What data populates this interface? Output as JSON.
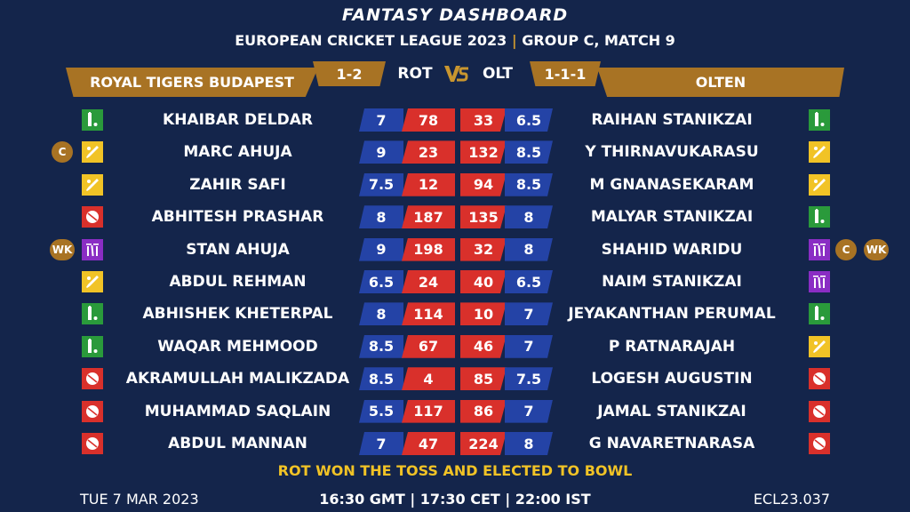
{
  "header": {
    "title": "FANTASY DASHBOARD",
    "subtitle_league": "EUROPEAN CRICKET LEAGUE 2023",
    "subtitle_separator": "|",
    "subtitle_match": "GROUP C, MATCH 9"
  },
  "teams": {
    "left": {
      "name": "ROYAL TIGERS BUDAPEST",
      "abbr": "ROT",
      "record": "1-2"
    },
    "right": {
      "name": "OLTEN",
      "abbr": "OLT",
      "record": "1-1-1"
    },
    "vs": "VS"
  },
  "colors": {
    "background": "#14254b",
    "gold": "#a87324",
    "blue_cell": "#2443a6",
    "red_cell": "#d9302b",
    "toss_text": "#f1c326",
    "bat_role": "#2a9a3b",
    "allrounder_role": "#f1c326",
    "bowler_role": "#d9302b",
    "keeper_role": "#8a2dc4"
  },
  "players": [
    {
      "left": {
        "name": "KHAIBAR DELDAR",
        "credits": "7",
        "points": "78",
        "role_icon": "bat-icon",
        "tags": []
      },
      "right": {
        "name": "RAIHAN STANIKZAI",
        "credits": "6.5",
        "points": "33",
        "role_icon": "bat-icon",
        "tags": []
      }
    },
    {
      "left": {
        "name": "MARC AHUJA",
        "credits": "9",
        "points": "23",
        "role_icon": "allrounder-icon",
        "tags": [
          "C"
        ]
      },
      "right": {
        "name": "Y THIRNAVUKARASU",
        "credits": "8.5",
        "points": "132",
        "role_icon": "allrounder-icon",
        "tags": []
      }
    },
    {
      "left": {
        "name": "ZAHIR SAFI",
        "credits": "7.5",
        "points": "12",
        "role_icon": "allrounder-icon",
        "tags": []
      },
      "right": {
        "name": "M GNANASEKARAM",
        "credits": "8.5",
        "points": "94",
        "role_icon": "allrounder-icon",
        "tags": []
      }
    },
    {
      "left": {
        "name": "ABHITESH PRASHAR",
        "credits": "8",
        "points": "187",
        "role_icon": "ball-icon",
        "tags": []
      },
      "right": {
        "name": "MALYAR STANIKZAI",
        "credits": "8",
        "points": "135",
        "role_icon": "bat-icon",
        "tags": []
      }
    },
    {
      "left": {
        "name": "STAN AHUJA",
        "credits": "9",
        "points": "198",
        "role_icon": "wicket-icon",
        "tags": [
          "WK"
        ]
      },
      "right": {
        "name": "SHAHID WARIDU",
        "credits": "8",
        "points": "32",
        "role_icon": "wicket-icon",
        "tags": [
          "C",
          "WK"
        ]
      }
    },
    {
      "left": {
        "name": "ABDUL REHMAN",
        "credits": "6.5",
        "points": "24",
        "role_icon": "allrounder-icon",
        "tags": []
      },
      "right": {
        "name": "NAIM STANIKZAI",
        "credits": "6.5",
        "points": "40",
        "role_icon": "wicket-icon",
        "tags": []
      }
    },
    {
      "left": {
        "name": "ABHISHEK KHETERPAL",
        "credits": "8",
        "points": "114",
        "role_icon": "bat-icon",
        "tags": []
      },
      "right": {
        "name": "JEYAKANTHAN PERUMAL",
        "credits": "7",
        "points": "10",
        "role_icon": "bat-icon",
        "tags": []
      }
    },
    {
      "left": {
        "name": "WAQAR MEHMOOD",
        "credits": "8.5",
        "points": "67",
        "role_icon": "bat-icon",
        "tags": []
      },
      "right": {
        "name": "P RATNARAJAH",
        "credits": "7",
        "points": "46",
        "role_icon": "allrounder-icon",
        "tags": []
      }
    },
    {
      "left": {
        "name": "AKRAMULLAH MALIKZADA",
        "credits": "8.5",
        "points": "4",
        "role_icon": "ball-icon",
        "tags": []
      },
      "right": {
        "name": "LOGESH AUGUSTIN",
        "credits": "7.5",
        "points": "85",
        "role_icon": "ball-icon",
        "tags": []
      }
    },
    {
      "left": {
        "name": "MUHAMMAD SAQLAIN",
        "credits": "5.5",
        "points": "117",
        "role_icon": "ball-icon",
        "tags": []
      },
      "right": {
        "name": "JAMAL STANIKZAI",
        "credits": "7",
        "points": "86",
        "role_icon": "ball-icon",
        "tags": []
      }
    },
    {
      "left": {
        "name": "ABDUL MANNAN",
        "credits": "7",
        "points": "47",
        "role_icon": "ball-icon",
        "tags": []
      },
      "right": {
        "name": "G NAVARETNARASA",
        "credits": "8",
        "points": "224",
        "role_icon": "ball-icon",
        "tags": []
      }
    }
  ],
  "footer": {
    "toss": "ROT WON THE TOSS AND ELECTED TO BOWL",
    "date": "TUE 7 MAR 2023",
    "times": "16:30 GMT | 17:30 CET | 22:00 IST",
    "code": "ECL23.037"
  }
}
